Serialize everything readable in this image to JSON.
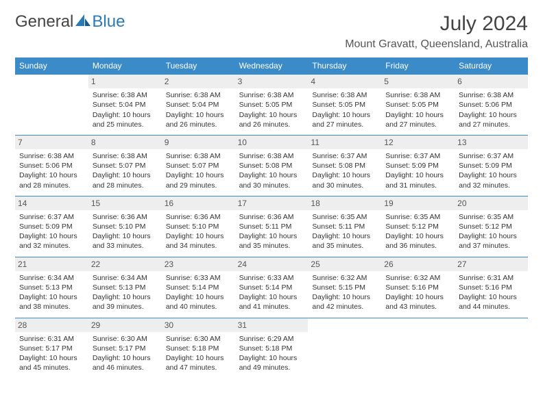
{
  "logo": {
    "text1": "General",
    "text2": "Blue"
  },
  "colors": {
    "header_bg": "#3b8bc9",
    "header_fg": "#ffffff",
    "daynum_bg": "#eeeeee",
    "border": "#3b8bc9",
    "title_color": "#444444",
    "text_color": "#333333",
    "logo_gray": "#444444",
    "logo_blue": "#2a7ab8"
  },
  "title": "July 2024",
  "location": "Mount Gravatt, Queensland, Australia",
  "day_headers": [
    "Sunday",
    "Monday",
    "Tuesday",
    "Wednesday",
    "Thursday",
    "Friday",
    "Saturday"
  ],
  "weeks": [
    [
      {
        "n": "",
        "sunrise": "",
        "sunset": "",
        "daylight": ""
      },
      {
        "n": "1",
        "sunrise": "Sunrise: 6:38 AM",
        "sunset": "Sunset: 5:04 PM",
        "daylight": "Daylight: 10 hours and 25 minutes."
      },
      {
        "n": "2",
        "sunrise": "Sunrise: 6:38 AM",
        "sunset": "Sunset: 5:04 PM",
        "daylight": "Daylight: 10 hours and 26 minutes."
      },
      {
        "n": "3",
        "sunrise": "Sunrise: 6:38 AM",
        "sunset": "Sunset: 5:05 PM",
        "daylight": "Daylight: 10 hours and 26 minutes."
      },
      {
        "n": "4",
        "sunrise": "Sunrise: 6:38 AM",
        "sunset": "Sunset: 5:05 PM",
        "daylight": "Daylight: 10 hours and 27 minutes."
      },
      {
        "n": "5",
        "sunrise": "Sunrise: 6:38 AM",
        "sunset": "Sunset: 5:05 PM",
        "daylight": "Daylight: 10 hours and 27 minutes."
      },
      {
        "n": "6",
        "sunrise": "Sunrise: 6:38 AM",
        "sunset": "Sunset: 5:06 PM",
        "daylight": "Daylight: 10 hours and 27 minutes."
      }
    ],
    [
      {
        "n": "7",
        "sunrise": "Sunrise: 6:38 AM",
        "sunset": "Sunset: 5:06 PM",
        "daylight": "Daylight: 10 hours and 28 minutes."
      },
      {
        "n": "8",
        "sunrise": "Sunrise: 6:38 AM",
        "sunset": "Sunset: 5:07 PM",
        "daylight": "Daylight: 10 hours and 28 minutes."
      },
      {
        "n": "9",
        "sunrise": "Sunrise: 6:38 AM",
        "sunset": "Sunset: 5:07 PM",
        "daylight": "Daylight: 10 hours and 29 minutes."
      },
      {
        "n": "10",
        "sunrise": "Sunrise: 6:38 AM",
        "sunset": "Sunset: 5:08 PM",
        "daylight": "Daylight: 10 hours and 30 minutes."
      },
      {
        "n": "11",
        "sunrise": "Sunrise: 6:37 AM",
        "sunset": "Sunset: 5:08 PM",
        "daylight": "Daylight: 10 hours and 30 minutes."
      },
      {
        "n": "12",
        "sunrise": "Sunrise: 6:37 AM",
        "sunset": "Sunset: 5:09 PM",
        "daylight": "Daylight: 10 hours and 31 minutes."
      },
      {
        "n": "13",
        "sunrise": "Sunrise: 6:37 AM",
        "sunset": "Sunset: 5:09 PM",
        "daylight": "Daylight: 10 hours and 32 minutes."
      }
    ],
    [
      {
        "n": "14",
        "sunrise": "Sunrise: 6:37 AM",
        "sunset": "Sunset: 5:09 PM",
        "daylight": "Daylight: 10 hours and 32 minutes."
      },
      {
        "n": "15",
        "sunrise": "Sunrise: 6:36 AM",
        "sunset": "Sunset: 5:10 PM",
        "daylight": "Daylight: 10 hours and 33 minutes."
      },
      {
        "n": "16",
        "sunrise": "Sunrise: 6:36 AM",
        "sunset": "Sunset: 5:10 PM",
        "daylight": "Daylight: 10 hours and 34 minutes."
      },
      {
        "n": "17",
        "sunrise": "Sunrise: 6:36 AM",
        "sunset": "Sunset: 5:11 PM",
        "daylight": "Daylight: 10 hours and 35 minutes."
      },
      {
        "n": "18",
        "sunrise": "Sunrise: 6:35 AM",
        "sunset": "Sunset: 5:11 PM",
        "daylight": "Daylight: 10 hours and 35 minutes."
      },
      {
        "n": "19",
        "sunrise": "Sunrise: 6:35 AM",
        "sunset": "Sunset: 5:12 PM",
        "daylight": "Daylight: 10 hours and 36 minutes."
      },
      {
        "n": "20",
        "sunrise": "Sunrise: 6:35 AM",
        "sunset": "Sunset: 5:12 PM",
        "daylight": "Daylight: 10 hours and 37 minutes."
      }
    ],
    [
      {
        "n": "21",
        "sunrise": "Sunrise: 6:34 AM",
        "sunset": "Sunset: 5:13 PM",
        "daylight": "Daylight: 10 hours and 38 minutes."
      },
      {
        "n": "22",
        "sunrise": "Sunrise: 6:34 AM",
        "sunset": "Sunset: 5:13 PM",
        "daylight": "Daylight: 10 hours and 39 minutes."
      },
      {
        "n": "23",
        "sunrise": "Sunrise: 6:33 AM",
        "sunset": "Sunset: 5:14 PM",
        "daylight": "Daylight: 10 hours and 40 minutes."
      },
      {
        "n": "24",
        "sunrise": "Sunrise: 6:33 AM",
        "sunset": "Sunset: 5:14 PM",
        "daylight": "Daylight: 10 hours and 41 minutes."
      },
      {
        "n": "25",
        "sunrise": "Sunrise: 6:32 AM",
        "sunset": "Sunset: 5:15 PM",
        "daylight": "Daylight: 10 hours and 42 minutes."
      },
      {
        "n": "26",
        "sunrise": "Sunrise: 6:32 AM",
        "sunset": "Sunset: 5:16 PM",
        "daylight": "Daylight: 10 hours and 43 minutes."
      },
      {
        "n": "27",
        "sunrise": "Sunrise: 6:31 AM",
        "sunset": "Sunset: 5:16 PM",
        "daylight": "Daylight: 10 hours and 44 minutes."
      }
    ],
    [
      {
        "n": "28",
        "sunrise": "Sunrise: 6:31 AM",
        "sunset": "Sunset: 5:17 PM",
        "daylight": "Daylight: 10 hours and 45 minutes."
      },
      {
        "n": "29",
        "sunrise": "Sunrise: 6:30 AM",
        "sunset": "Sunset: 5:17 PM",
        "daylight": "Daylight: 10 hours and 46 minutes."
      },
      {
        "n": "30",
        "sunrise": "Sunrise: 6:30 AM",
        "sunset": "Sunset: 5:18 PM",
        "daylight": "Daylight: 10 hours and 47 minutes."
      },
      {
        "n": "31",
        "sunrise": "Sunrise: 6:29 AM",
        "sunset": "Sunset: 5:18 PM",
        "daylight": "Daylight: 10 hours and 49 minutes."
      },
      {
        "n": "",
        "sunrise": "",
        "sunset": "",
        "daylight": ""
      },
      {
        "n": "",
        "sunrise": "",
        "sunset": "",
        "daylight": ""
      },
      {
        "n": "",
        "sunrise": "",
        "sunset": "",
        "daylight": ""
      }
    ]
  ]
}
